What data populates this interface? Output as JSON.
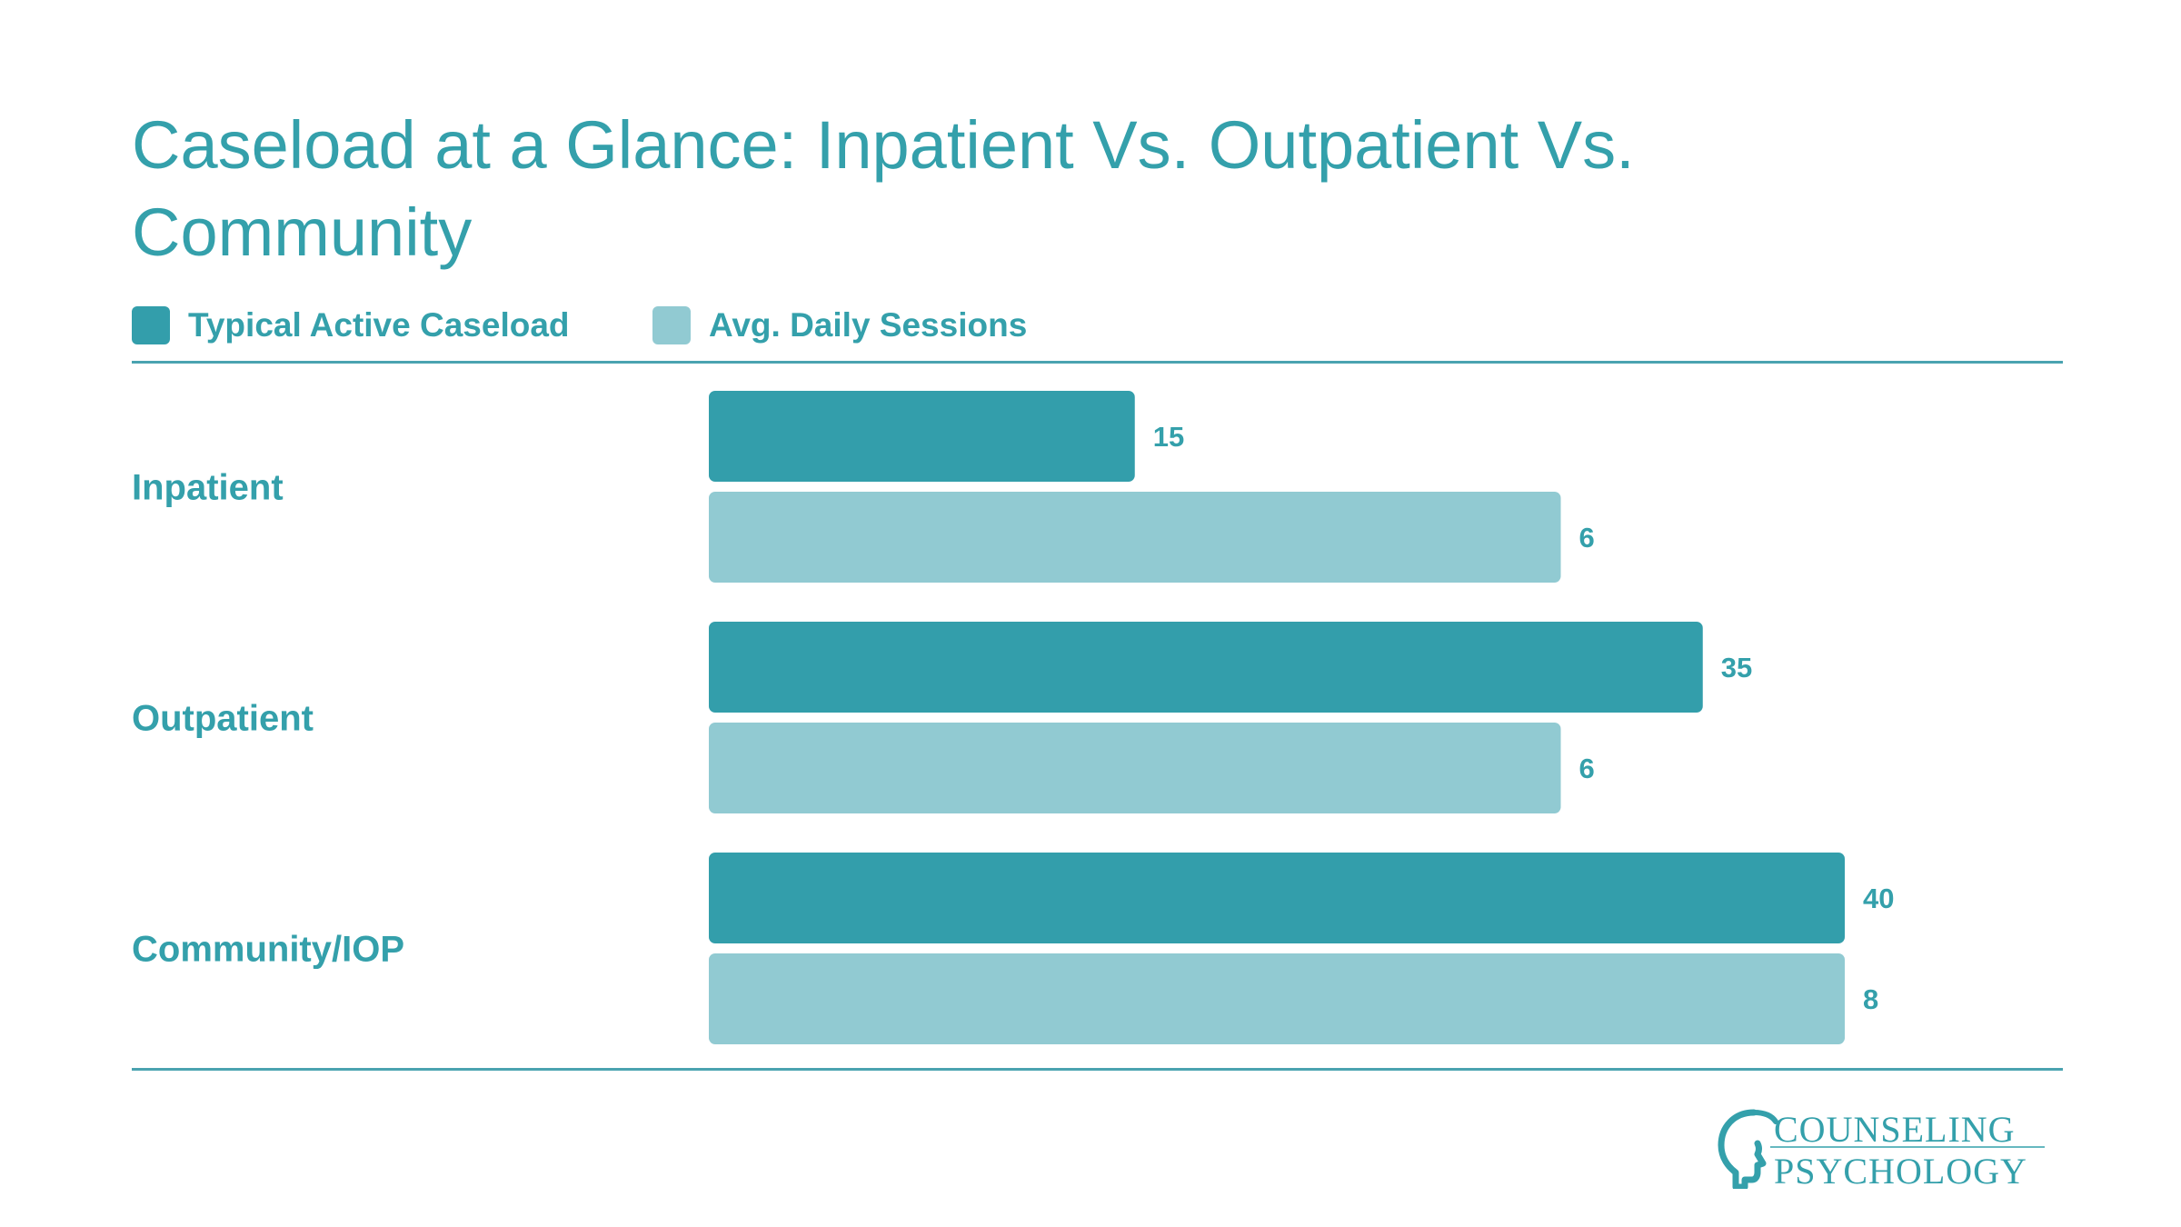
{
  "title": "Caseload at a Glance: Inpatient Vs. Outpatient Vs. Community",
  "colors": {
    "accent": "#34a0ab",
    "series_dark": "#339eab",
    "series_light": "#91cad2",
    "rule": "#4aa3b0"
  },
  "legend": [
    {
      "label": "Typical Active Caseload",
      "color": "#339eab"
    },
    {
      "label": "Avg. Daily Sessions",
      "color": "#91cad2"
    }
  ],
  "chart_data": {
    "type": "bar",
    "orientation": "horizontal",
    "categories": [
      "Inpatient",
      "Outpatient",
      "Community/IOP"
    ],
    "series": [
      {
        "name": "Typical Active Caseload",
        "values": [
          15,
          35,
          40
        ],
        "color": "#339eab",
        "scale_max": 40
      },
      {
        "name": "Avg. Daily Sessions",
        "values": [
          6,
          6,
          8
        ],
        "color": "#91cad2",
        "scale_max": 8
      }
    ],
    "xlabel": "",
    "ylabel": "",
    "grid": false,
    "legend_position": "top-left"
  },
  "logo": {
    "line1": "COUNSELING",
    "line2": "PSYCHOLOGY",
    "icon": "head-profile-icon"
  }
}
